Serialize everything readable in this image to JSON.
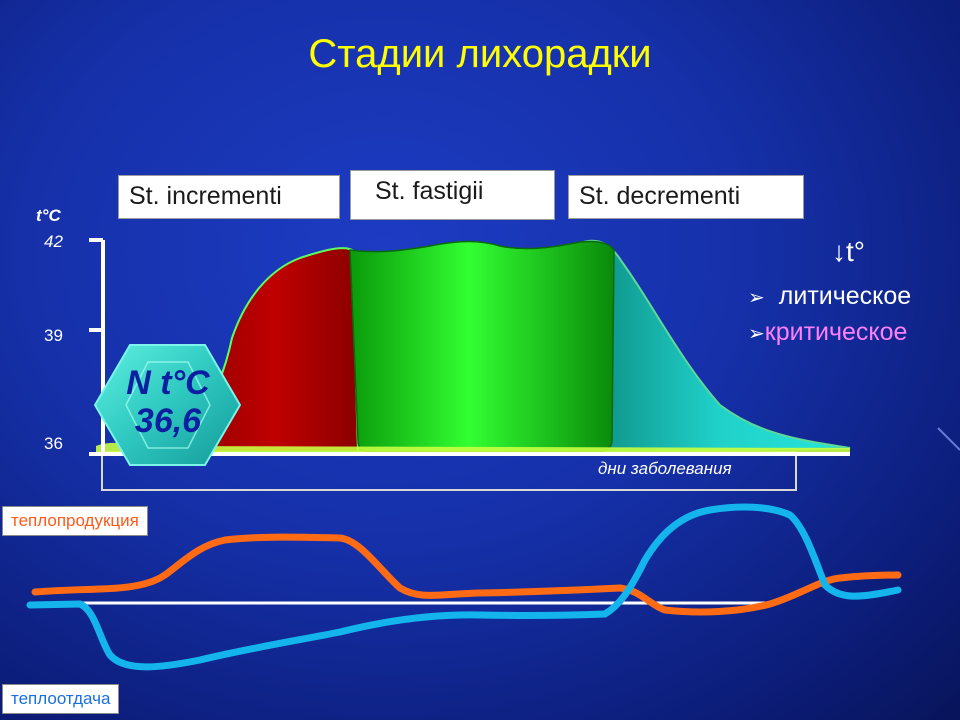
{
  "slide": {
    "title": "Стадии лихорадки"
  },
  "stages": {
    "increment": "St. incrementi",
    "fastigii": "St. fastigii",
    "decrement": "St. decrementi"
  },
  "temperature_axis": {
    "unit_label": "t°C",
    "ticks": [
      "42",
      "39",
      "36"
    ]
  },
  "days_label": "дни заболевания",
  "normal_temp": {
    "line1": "N t°C",
    "line2": "36,6"
  },
  "decline_types": {
    "header": "↓t°",
    "lytic": "литическое",
    "critical": "критическое",
    "bullet": "➢"
  },
  "heat_curves": {
    "production_label": "теплопродукция",
    "loss_label": "теплоотдача"
  },
  "colors": {
    "title": "#ffff00",
    "increment_fill": "#b00000",
    "fastigii_fill": "#14e014",
    "decrement_fill": "#1ab8b0",
    "production_curve": "#ff6a14",
    "loss_curve": "#14b4ec",
    "lytic_text": "#ffffff",
    "critical_text": "#ff7fff"
  }
}
